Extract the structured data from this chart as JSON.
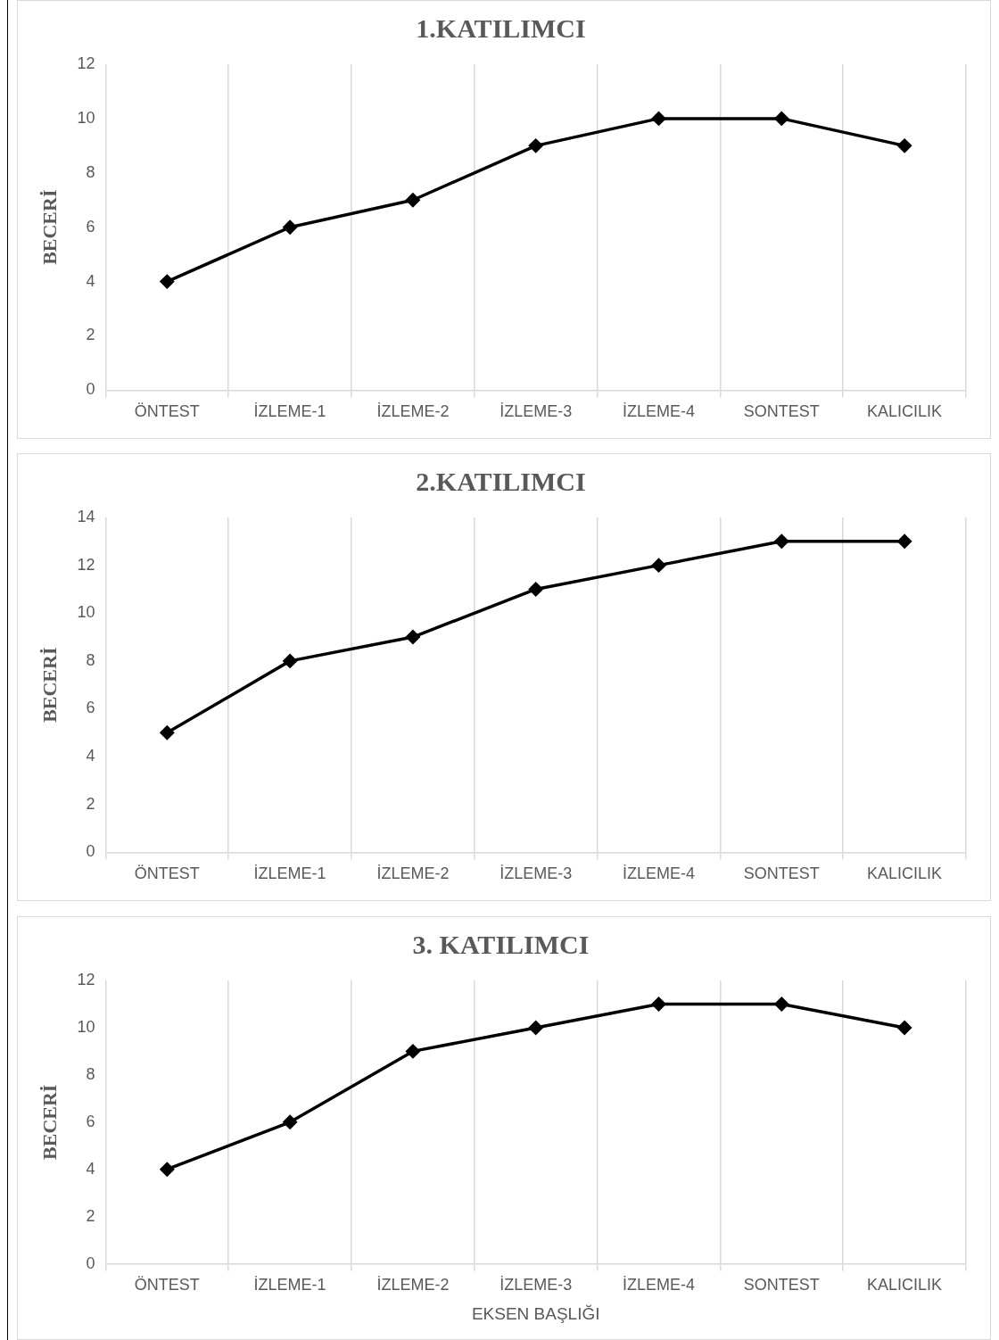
{
  "chart_data": [
    {
      "type": "line",
      "title": "1.KATILIMCI",
      "ylabel": "BECERİ",
      "categories": [
        "ÖNTEST",
        "İZLEME-1",
        "İZLEME-2",
        "İZLEME-3",
        "İZLEME-4",
        "SONTEST",
        "KALICILIK"
      ],
      "series": [
        {
          "color": "#000000",
          "values": [
            4,
            6,
            7,
            9,
            10,
            10,
            9
          ]
        }
      ],
      "ylim": [
        0,
        12
      ],
      "yticks": [
        0,
        2,
        4,
        6,
        8,
        10,
        12
      ],
      "grid": "x",
      "marker": "diamond",
      "line_style": "solid",
      "legend": false
    },
    {
      "type": "line",
      "title": "2.KATILIMCI",
      "ylabel": "BECERİ",
      "categories": [
        "ÖNTEST",
        "İZLEME-1",
        "İZLEME-2",
        "İZLEME-3",
        "İZLEME-4",
        "SONTEST",
        "KALICILIK"
      ],
      "series": [
        {
          "color": "#000000",
          "values": [
            5,
            8,
            9,
            11,
            12,
            13,
            13
          ]
        }
      ],
      "ylim": [
        0,
        14
      ],
      "yticks": [
        0,
        2,
        4,
        6,
        8,
        10,
        12,
        14
      ],
      "grid": "x",
      "marker": "diamond",
      "line_style": "solid",
      "legend": false
    },
    {
      "type": "line",
      "title": "3. KATILIMCI",
      "ylabel": "BECERİ",
      "xlabel": "EKSEN BAŞLIĞI",
      "categories": [
        "ÖNTEST",
        "İZLEME-1",
        "İZLEME-2",
        "İZLEME-3",
        "İZLEME-4",
        "SONTEST",
        "KALICILIK"
      ],
      "series": [
        {
          "color": "#000000",
          "values": [
            4,
            6,
            9,
            10,
            11,
            11,
            10
          ]
        }
      ],
      "ylim": [
        0,
        12
      ],
      "yticks": [
        0,
        2,
        4,
        6,
        8,
        10,
        12
      ],
      "grid": "x",
      "marker": "diamond",
      "line_style": "solid",
      "legend": false
    }
  ]
}
